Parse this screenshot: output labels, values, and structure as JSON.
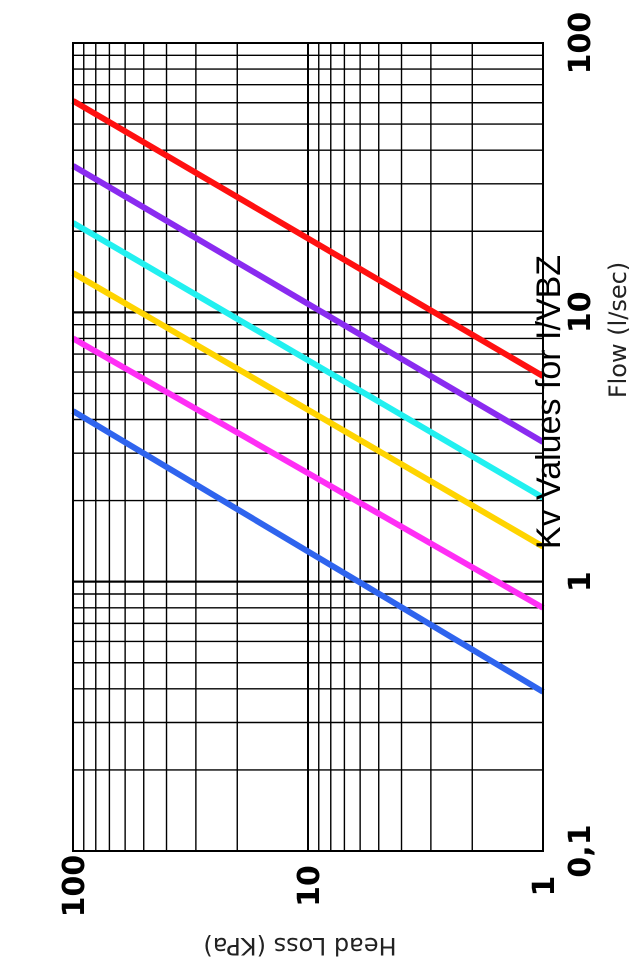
{
  "chart_data": {
    "type": "line",
    "title": "Kv Values for I/VBZ",
    "xlabel": "Flow (l/sec)",
    "ylabel": "Head Loss (KPa)",
    "x_scale": "log",
    "y_scale": "log",
    "xlim": [
      0.1,
      100
    ],
    "ylim": [
      1,
      100
    ],
    "x_ticks": [
      {
        "value": 0.1,
        "label": "0,1"
      },
      {
        "value": 1,
        "label": "1"
      },
      {
        "value": 10,
        "label": "10"
      },
      {
        "value": 100,
        "label": "100"
      }
    ],
    "y_ticks": [
      {
        "value": 1,
        "label": "1"
      },
      {
        "value": 10,
        "label": "10"
      },
      {
        "value": 100,
        "label": "100"
      }
    ],
    "grid": true,
    "legend": "none",
    "series": [
      {
        "color": "#2f64ee",
        "x": [
          0.39,
          4.3
        ],
        "y": [
          1,
          100
        ]
      },
      {
        "color": "#ff2ef5",
        "x": [
          0.8,
          8.0
        ],
        "y": [
          1,
          100
        ]
      },
      {
        "color": "#ffd400",
        "x": [
          1.35,
          14.0
        ],
        "y": [
          1,
          100
        ]
      },
      {
        "color": "#22f0f0",
        "x": [
          2.05,
          21.5
        ],
        "y": [
          1,
          100
        ]
      },
      {
        "color": "#8a2bf0",
        "x": [
          3.3,
          35.0
        ],
        "y": [
          1,
          100
        ]
      },
      {
        "color": "#ff1010",
        "x": [
          5.8,
          61.0
        ],
        "y": [
          1,
          100
        ]
      }
    ]
  }
}
